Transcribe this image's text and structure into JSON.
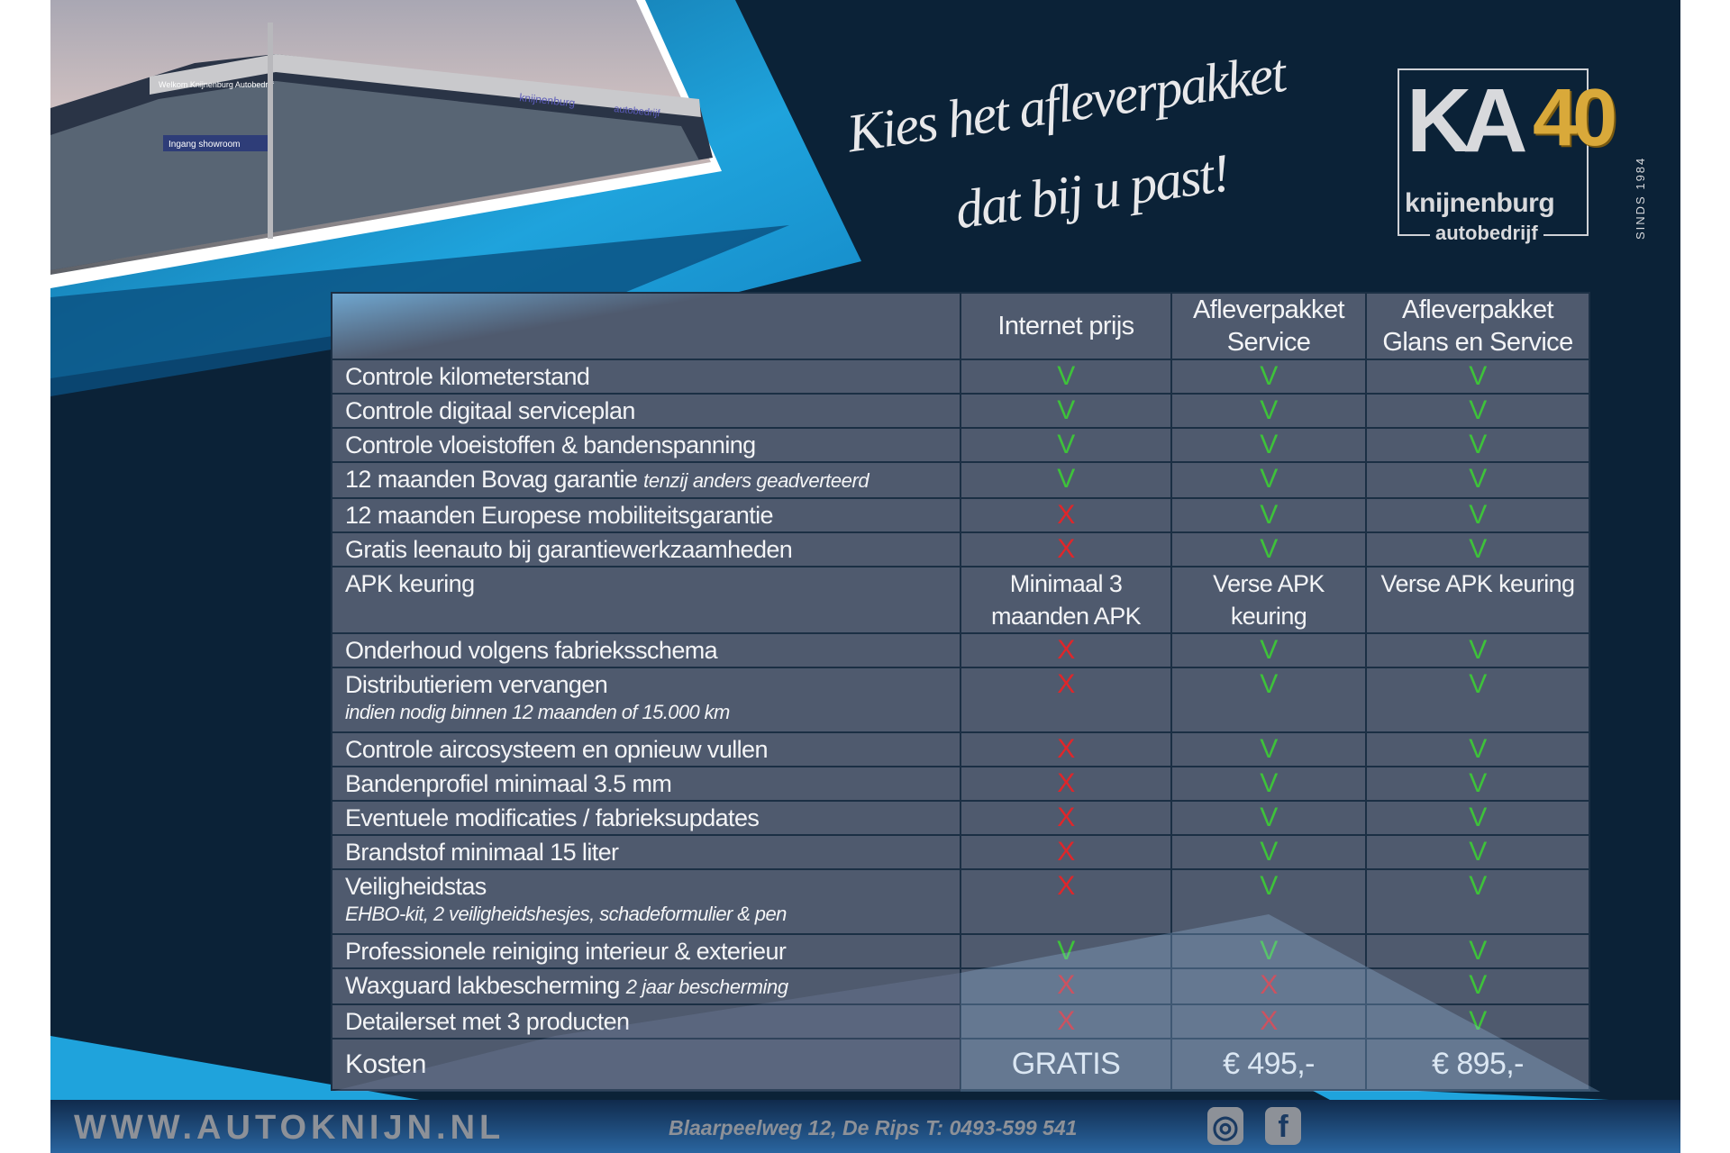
{
  "photo": {
    "signs": [
      "Welkom Knijnenburg Autobedrijf",
      "Ingang showroom",
      "knijnenburg",
      "autobedrijf"
    ]
  },
  "headline": {
    "line1": "Kies het afleverpakket",
    "line2": "dat bij u past!"
  },
  "logo": {
    "mark": "KA",
    "anniversary": "40",
    "name": "knijnenburg",
    "sub": "autobedrijf",
    "since": "SINDS 1984"
  },
  "colors": {
    "background": "#0b2237",
    "accent_blue": "#1fa3dc",
    "table_bg": "#4f5a6e",
    "check_green": "#3ec23a",
    "cross_red": "#e0262a"
  },
  "table": {
    "columns": [
      "",
      "Internet prijs",
      "Afleverpakket Service",
      "Afleverpakket Glans en Service"
    ],
    "rows": [
      {
        "label": "Controle kilometerstand",
        "note": "",
        "sub": "",
        "values": [
          "V",
          "V",
          "V"
        ]
      },
      {
        "label": "Controle digitaal serviceplan",
        "note": "",
        "sub": "",
        "values": [
          "V",
          "V",
          "V"
        ]
      },
      {
        "label": "Controle vloeistoffen & bandenspanning",
        "note": "",
        "sub": "",
        "values": [
          "V",
          "V",
          "V"
        ]
      },
      {
        "label": "12 maanden Bovag garantie",
        "note": "tenzij anders geadverteerd",
        "sub": "",
        "values": [
          "V",
          "V",
          "V"
        ]
      },
      {
        "label": "12 maanden Europese mobiliteitsgarantie",
        "note": "",
        "sub": "",
        "values": [
          "X",
          "V",
          "V"
        ]
      },
      {
        "label": "Gratis leenauto bij garantiewerkzaamheden",
        "note": "",
        "sub": "",
        "values": [
          "X",
          "V",
          "V"
        ]
      },
      {
        "label": "APK keuring",
        "note": "",
        "sub": "",
        "values": [
          "Minimaal 3 maanden APK",
          "Verse APK keuring",
          "Verse APK keuring"
        ]
      },
      {
        "label": "Onderhoud volgens fabrieksschema",
        "note": "",
        "sub": "",
        "values": [
          "X",
          "V",
          "V"
        ]
      },
      {
        "label": "Distributieriem vervangen",
        "note": "",
        "sub": "indien nodig binnen 12 maanden of 15.000 km",
        "values": [
          "X",
          "V",
          "V"
        ]
      },
      {
        "label": "Controle aircosysteem en opnieuw vullen",
        "note": "",
        "sub": "",
        "values": [
          "X",
          "V",
          "V"
        ]
      },
      {
        "label": "Bandenprofiel minimaal 3.5 mm",
        "note": "",
        "sub": "",
        "values": [
          "X",
          "V",
          "V"
        ]
      },
      {
        "label": "Eventuele modificaties / fabrieksupdates",
        "note": "",
        "sub": "",
        "values": [
          "X",
          "V",
          "V"
        ]
      },
      {
        "label": "Brandstof minimaal 15 liter",
        "note": "",
        "sub": "",
        "values": [
          "X",
          "V",
          "V"
        ]
      },
      {
        "label": "Veiligheidstas",
        "note": "",
        "sub": "EHBO-kit, 2 veiligheidshesjes, schadeformulier & pen",
        "values": [
          "X",
          "V",
          "V"
        ]
      },
      {
        "label": "Professionele reiniging interieur & exterieur",
        "note": "",
        "sub": "",
        "values": [
          "V",
          "V",
          "V"
        ]
      },
      {
        "label": "Waxguard lakbescherming",
        "note": "2 jaar bescherming",
        "sub": "",
        "values": [
          "X",
          "X",
          "V"
        ]
      },
      {
        "label": "Detailerset met 3 producten",
        "note": "",
        "sub": "",
        "values": [
          "X",
          "X",
          "V"
        ]
      }
    ],
    "cost": {
      "label": "Kosten",
      "values": [
        "GRATIS",
        "€ 495,-",
        "€ 895,-"
      ]
    }
  },
  "footer": {
    "url": "WWW.AUTOKNIJN.NL",
    "address": "Blaarpeelweg 12, De Rips  T: 0493-599 541",
    "social": [
      {
        "icon": "instagram-icon",
        "glyph": "◎"
      },
      {
        "icon": "facebook-icon",
        "glyph": "f"
      }
    ]
  }
}
